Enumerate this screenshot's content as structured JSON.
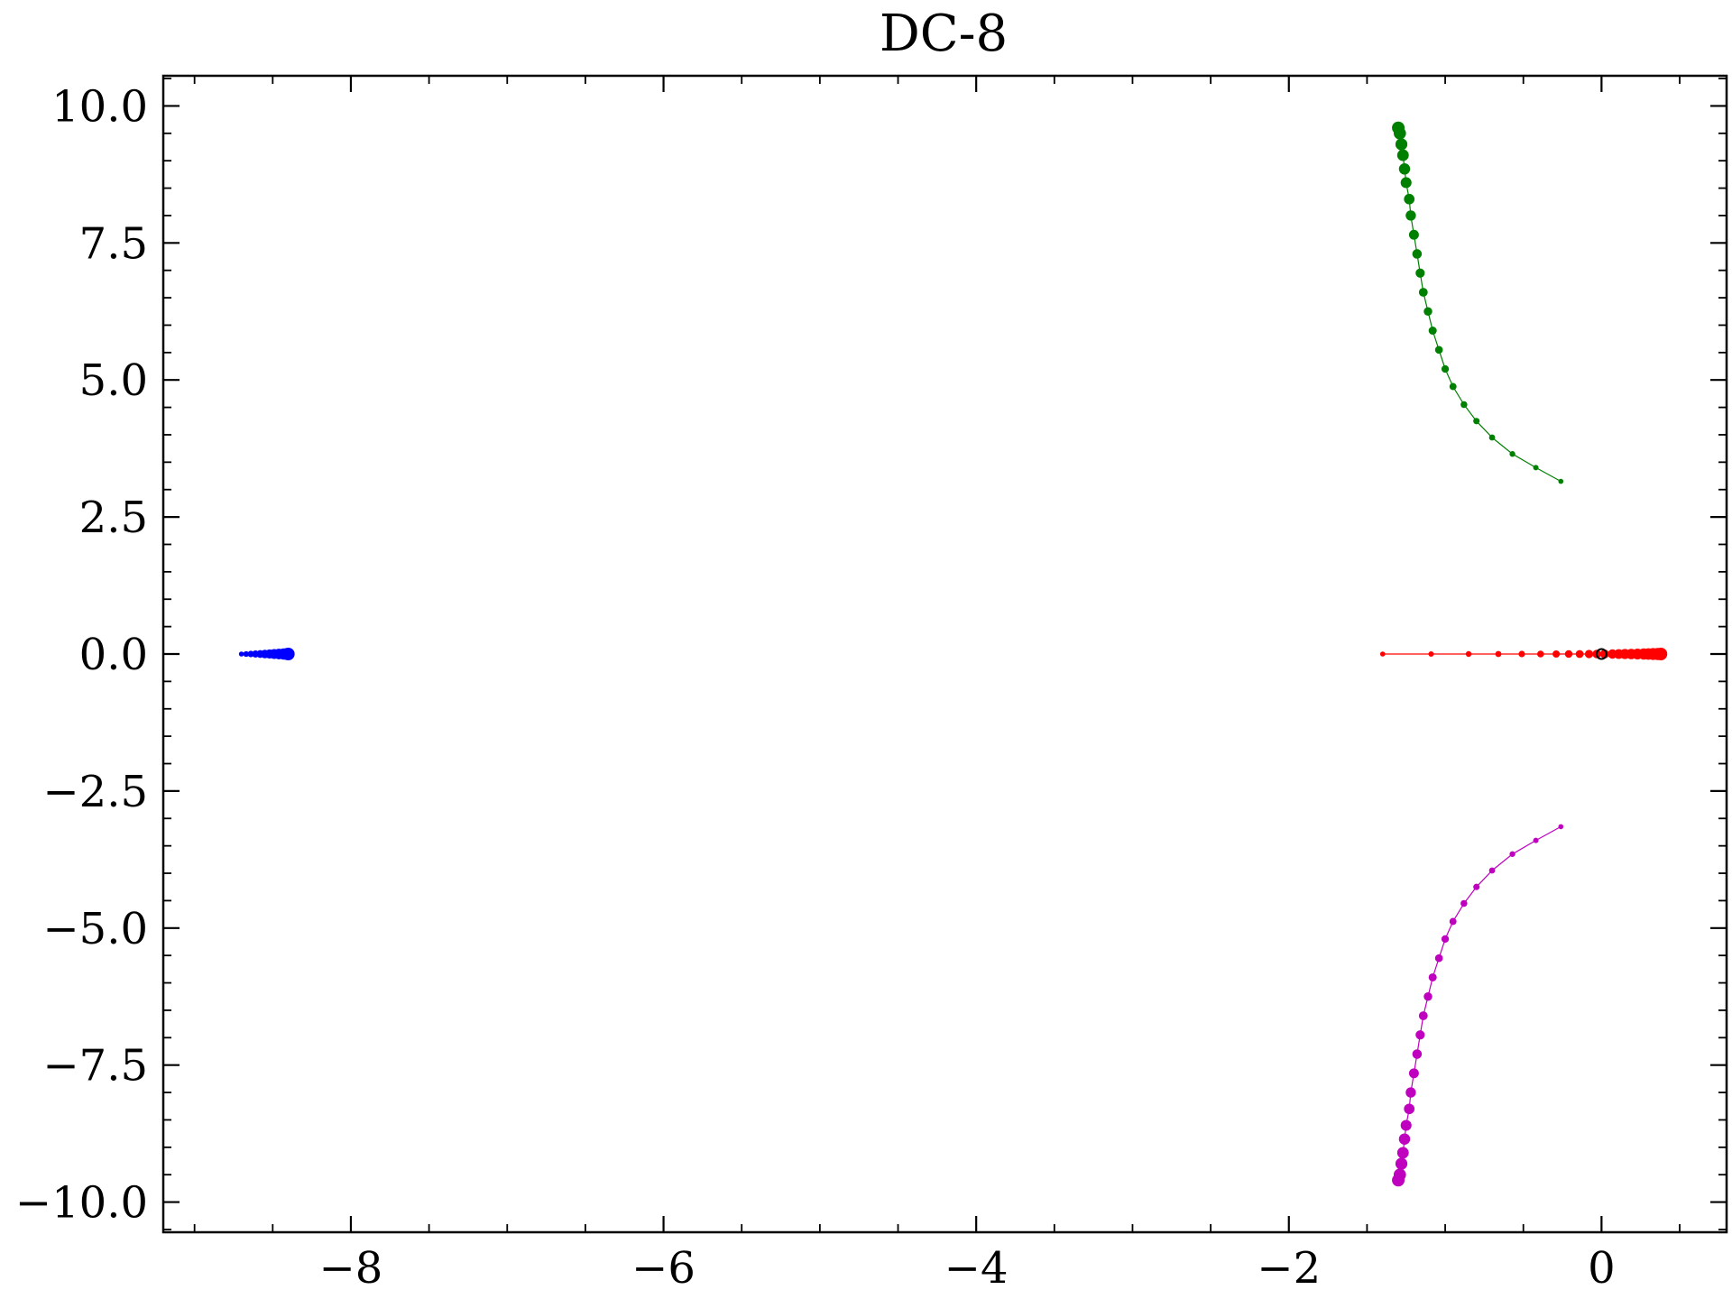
{
  "chart_data": {
    "type": "scatter",
    "title": "DC-8",
    "xlabel": "",
    "ylabel": "",
    "xlim": [
      -9.2,
      0.8
    ],
    "ylim": [
      -10.55,
      10.55
    ],
    "grid": false,
    "legend": "none",
    "x_ticks": [
      -8,
      -6,
      -4,
      -2,
      0
    ],
    "x_tick_labels": [
      "−8",
      "−6",
      "−4",
      "−2",
      "0"
    ],
    "x_minor_step": 0.5,
    "y_ticks": [
      10.0,
      7.5,
      5.0,
      2.5,
      0.0,
      -2.5,
      -5.0,
      -7.5,
      -10.0
    ],
    "y_tick_labels": [
      "10.0",
      "7.5",
      "5.0",
      "2.5",
      "0.0",
      "−2.5",
      "−5.0",
      "−7.5",
      "−10.0"
    ],
    "y_minor_step": 0.5,
    "series": [
      {
        "color": "#0000ff",
        "marker": "circle",
        "points": [
          [
            -8.7,
            0
          ],
          [
            -8.67,
            0
          ],
          [
            -8.64,
            0
          ],
          [
            -8.61,
            0
          ],
          [
            -8.58,
            0
          ],
          [
            -8.55,
            0
          ],
          [
            -8.52,
            0
          ],
          [
            -8.49,
            0
          ],
          [
            -8.46,
            0
          ],
          [
            -8.43,
            0
          ],
          [
            -8.41,
            0
          ],
          [
            -8.4,
            0
          ]
        ]
      },
      {
        "color": "#ff0000",
        "marker": "circle",
        "points": [
          [
            -1.4,
            0
          ],
          [
            -1.09,
            0
          ],
          [
            -0.85,
            0
          ],
          [
            -0.66,
            0
          ],
          [
            -0.51,
            0
          ],
          [
            -0.39,
            0
          ],
          [
            -0.29,
            0
          ],
          [
            -0.21,
            0
          ],
          [
            -0.14,
            0
          ],
          [
            -0.08,
            0
          ],
          [
            -0.03,
            0
          ],
          [
            0.02,
            0
          ],
          [
            0.07,
            0
          ],
          [
            0.11,
            0
          ],
          [
            0.15,
            0
          ],
          [
            0.19,
            0
          ],
          [
            0.23,
            0
          ],
          [
            0.27,
            0
          ],
          [
            0.3,
            0
          ],
          [
            0.33,
            0
          ],
          [
            0.36,
            0
          ],
          [
            0.38,
            0
          ]
        ]
      },
      {
        "color": "#008000",
        "marker": "circle",
        "points": [
          [
            -0.26,
            3.15
          ],
          [
            -0.42,
            3.4
          ],
          [
            -0.57,
            3.65
          ],
          [
            -0.7,
            3.95
          ],
          [
            -0.8,
            4.25
          ],
          [
            -0.88,
            4.55
          ],
          [
            -0.95,
            4.88
          ],
          [
            -1.0,
            5.2
          ],
          [
            -1.04,
            5.55
          ],
          [
            -1.08,
            5.9
          ],
          [
            -1.11,
            6.25
          ],
          [
            -1.14,
            6.6
          ],
          [
            -1.16,
            6.95
          ],
          [
            -1.18,
            7.3
          ],
          [
            -1.2,
            7.65
          ],
          [
            -1.22,
            8.0
          ],
          [
            -1.23,
            8.3
          ],
          [
            -1.25,
            8.6
          ],
          [
            -1.26,
            8.85
          ],
          [
            -1.27,
            9.1
          ],
          [
            -1.28,
            9.3
          ],
          [
            -1.29,
            9.5
          ],
          [
            -1.3,
            9.6
          ]
        ]
      },
      {
        "color": "#bf00bf",
        "marker": "circle",
        "points": [
          [
            -0.26,
            -3.15
          ],
          [
            -0.42,
            -3.4
          ],
          [
            -0.57,
            -3.65
          ],
          [
            -0.7,
            -3.95
          ],
          [
            -0.8,
            -4.25
          ],
          [
            -0.88,
            -4.55
          ],
          [
            -0.95,
            -4.88
          ],
          [
            -1.0,
            -5.2
          ],
          [
            -1.04,
            -5.55
          ],
          [
            -1.08,
            -5.9
          ],
          [
            -1.11,
            -6.25
          ],
          [
            -1.14,
            -6.6
          ],
          [
            -1.16,
            -6.95
          ],
          [
            -1.18,
            -7.3
          ],
          [
            -1.2,
            -7.65
          ],
          [
            -1.22,
            -8.0
          ],
          [
            -1.23,
            -8.3
          ],
          [
            -1.25,
            -8.6
          ],
          [
            -1.26,
            -8.85
          ],
          [
            -1.27,
            -9.1
          ],
          [
            -1.28,
            -9.3
          ],
          [
            -1.29,
            -9.5
          ],
          [
            -1.3,
            -9.6
          ]
        ]
      }
    ],
    "annotations": [
      {
        "shape": "open-circle",
        "color": "#000000",
        "x": 0,
        "y": 0
      }
    ]
  }
}
